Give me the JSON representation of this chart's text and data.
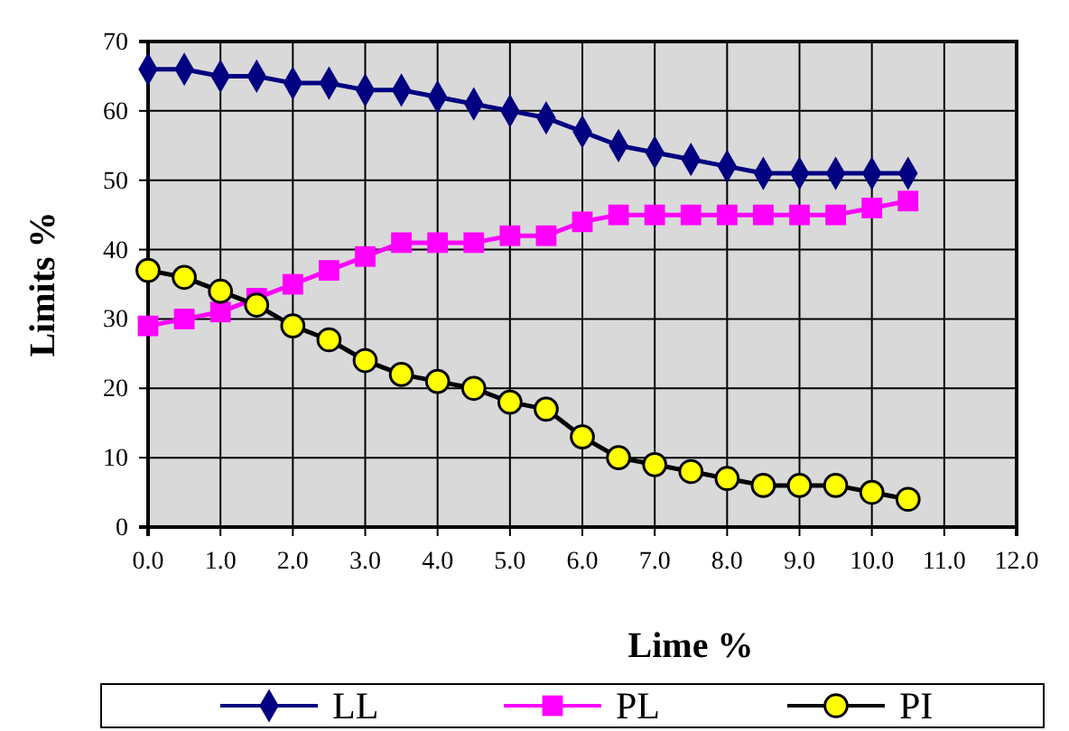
{
  "chart_data": {
    "type": "line",
    "xlabel": "Lime %",
    "ylabel": "Limits %",
    "x": [
      0,
      0.5,
      1,
      1.5,
      2,
      2.5,
      3,
      3.5,
      4,
      4.5,
      5,
      5.5,
      6,
      6.5,
      7,
      7.5,
      8,
      8.5,
      9,
      9.5,
      10,
      10.5
    ],
    "xlim": [
      0,
      12
    ],
    "xticks": [
      {
        "value": 0,
        "label": "0.0"
      },
      {
        "value": 1,
        "label": "1.0"
      },
      {
        "value": 2,
        "label": "2.0"
      },
      {
        "value": 3,
        "label": "3.0"
      },
      {
        "value": 4,
        "label": "4.0"
      },
      {
        "value": 5,
        "label": "5.0"
      },
      {
        "value": 6,
        "label": "6.0"
      },
      {
        "value": 7,
        "label": "7.0"
      },
      {
        "value": 8,
        "label": "8.0"
      },
      {
        "value": 9,
        "label": "9.0"
      },
      {
        "value": 10,
        "label": "10.0"
      },
      {
        "value": 11,
        "label": "11.0"
      },
      {
        "value": 12,
        "label": "12.0"
      }
    ],
    "ylim": [
      0,
      70
    ],
    "yticks": [
      0,
      10,
      20,
      30,
      40,
      50,
      60,
      70
    ],
    "grid": true,
    "legend": "bottom",
    "line_style": "solid",
    "series": [
      {
        "name": "LL",
        "color": "#000080",
        "marker": "diamond",
        "values": [
          66,
          66,
          65,
          65,
          64,
          64,
          63,
          63,
          62,
          61,
          60,
          59,
          57,
          55,
          54,
          53,
          52,
          51,
          51,
          51,
          51,
          51
        ]
      },
      {
        "name": "PL",
        "color": "#ff00ff",
        "marker": "square",
        "values": [
          29,
          30,
          31,
          33,
          35,
          37,
          39,
          41,
          41,
          41,
          42,
          42,
          44,
          45,
          45,
          45,
          45,
          45,
          45,
          45,
          46,
          47
        ]
      },
      {
        "name": "PI",
        "color": "#ffff00",
        "marker": "circle",
        "values": [
          37,
          36,
          34,
          32,
          29,
          27,
          24,
          22,
          21,
          20,
          18,
          17,
          13,
          10,
          9,
          8,
          7,
          6,
          6,
          6,
          5,
          4
        ]
      }
    ]
  }
}
